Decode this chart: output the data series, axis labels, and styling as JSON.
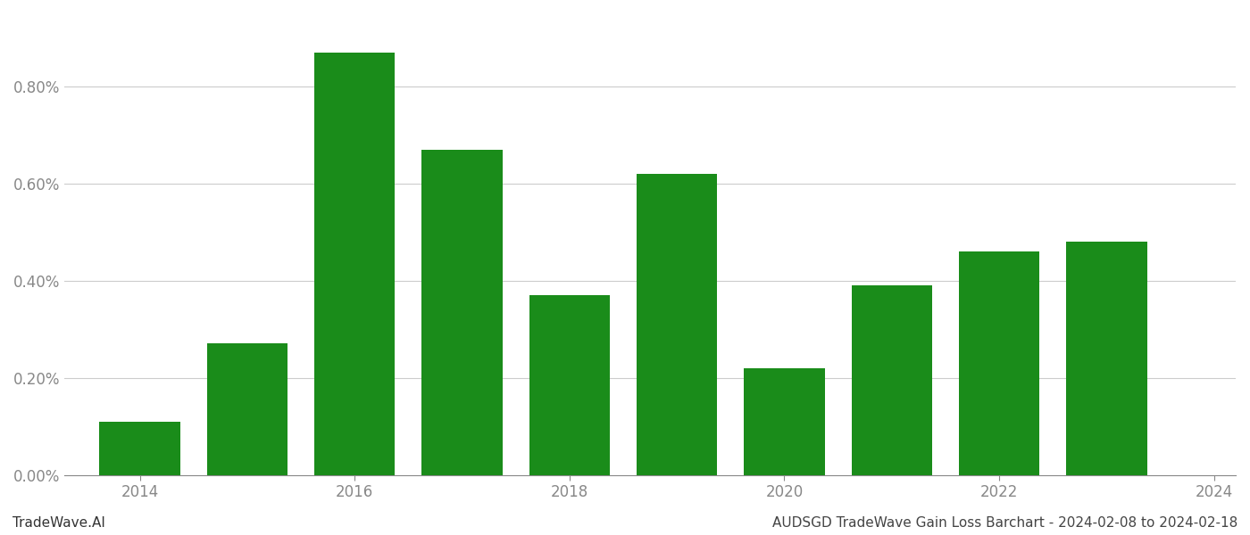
{
  "years": [
    2014,
    2015,
    2016,
    2017,
    2018,
    2019,
    2020,
    2021,
    2022,
    2023
  ],
  "values": [
    0.0011,
    0.0027,
    0.0087,
    0.0067,
    0.0037,
    0.0062,
    0.0022,
    0.0039,
    0.0046,
    0.0048
  ],
  "bar_color": "#1a8c1a",
  "background_color": "#ffffff",
  "grid_color": "#cccccc",
  "axis_color": "#888888",
  "tick_label_color": "#888888",
  "ylim": [
    0,
    0.0095
  ],
  "yticks": [
    0.0,
    0.002,
    0.004,
    0.006,
    0.008
  ],
  "ytick_labels": [
    "0.00%",
    "0.20%",
    "0.40%",
    "0.60%",
    "0.80%"
  ],
  "xtick_labels": [
    "2014",
    "2016",
    "2018",
    "2020",
    "2022",
    "2024"
  ],
  "footer_left": "TradeWave.AI",
  "footer_right": "AUDSGD TradeWave Gain Loss Barchart - 2024-02-08 to 2024-02-18",
  "bar_width": 0.75,
  "tick_fontsize": 12,
  "footer_fontsize": 11
}
